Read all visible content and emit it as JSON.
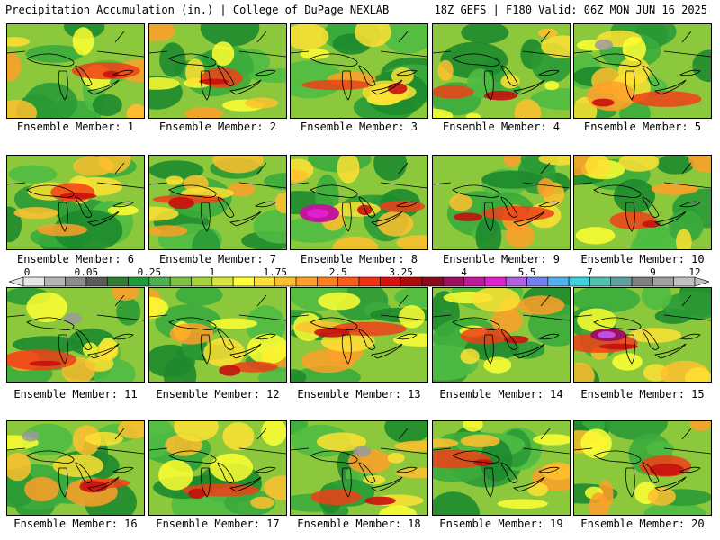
{
  "header": {
    "title_left": "Precipitation Accumulation (in.) | College of DuPage NEXLAB",
    "title_right": "18Z GEFS | F180 Valid: 06Z MON JUN 16 2025"
  },
  "panels": [
    {
      "label": "Ensemble Member: 1"
    },
    {
      "label": "Ensemble Member: 2"
    },
    {
      "label": "Ensemble Member: 3"
    },
    {
      "label": "Ensemble Member: 4"
    },
    {
      "label": "Ensemble Member: 5"
    },
    {
      "label": "Ensemble Member: 6"
    },
    {
      "label": "Ensemble Member: 7"
    },
    {
      "label": "Ensemble Member: 8"
    },
    {
      "label": "Ensemble Member: 9"
    },
    {
      "label": "Ensemble Member: 10"
    },
    {
      "label": "Ensemble Member: 11"
    },
    {
      "label": "Ensemble Member: 12"
    },
    {
      "label": "Ensemble Member: 13"
    },
    {
      "label": "Ensemble Member: 14"
    },
    {
      "label": "Ensemble Member: 15"
    },
    {
      "label": "Ensemble Member: 16"
    },
    {
      "label": "Ensemble Member: 17"
    },
    {
      "label": "Ensemble Member: 18"
    },
    {
      "label": "Ensemble Member: 19"
    },
    {
      "label": "Ensemble Member: 20"
    }
  ],
  "colorbar": {
    "tick_labels": [
      "0",
      "0.05",
      "0.25",
      "1",
      "1.75",
      "2.5",
      "3.25",
      "4",
      "5.5",
      "7",
      "9",
      "12"
    ],
    "colors": [
      "#e6e6e6",
      "#b4b4b4",
      "#8c8c8c",
      "#5a5a5a",
      "#2e7d32",
      "#1e9b3a",
      "#4caf50",
      "#7cc142",
      "#a8d23a",
      "#d6e63a",
      "#ffff33",
      "#ffe033",
      "#ffc02e",
      "#ff9f28",
      "#ff7f20",
      "#ff5a1a",
      "#f03015",
      "#d81010",
      "#b00a0a",
      "#8b0a1a",
      "#a01060",
      "#c0189a",
      "#e020d0",
      "#b060e0",
      "#7080f0",
      "#50b0f0",
      "#40d0e0",
      "#50c0b0",
      "#60a0a0",
      "#808080",
      "#a0a0a0",
      "#c0c0c0"
    ]
  }
}
